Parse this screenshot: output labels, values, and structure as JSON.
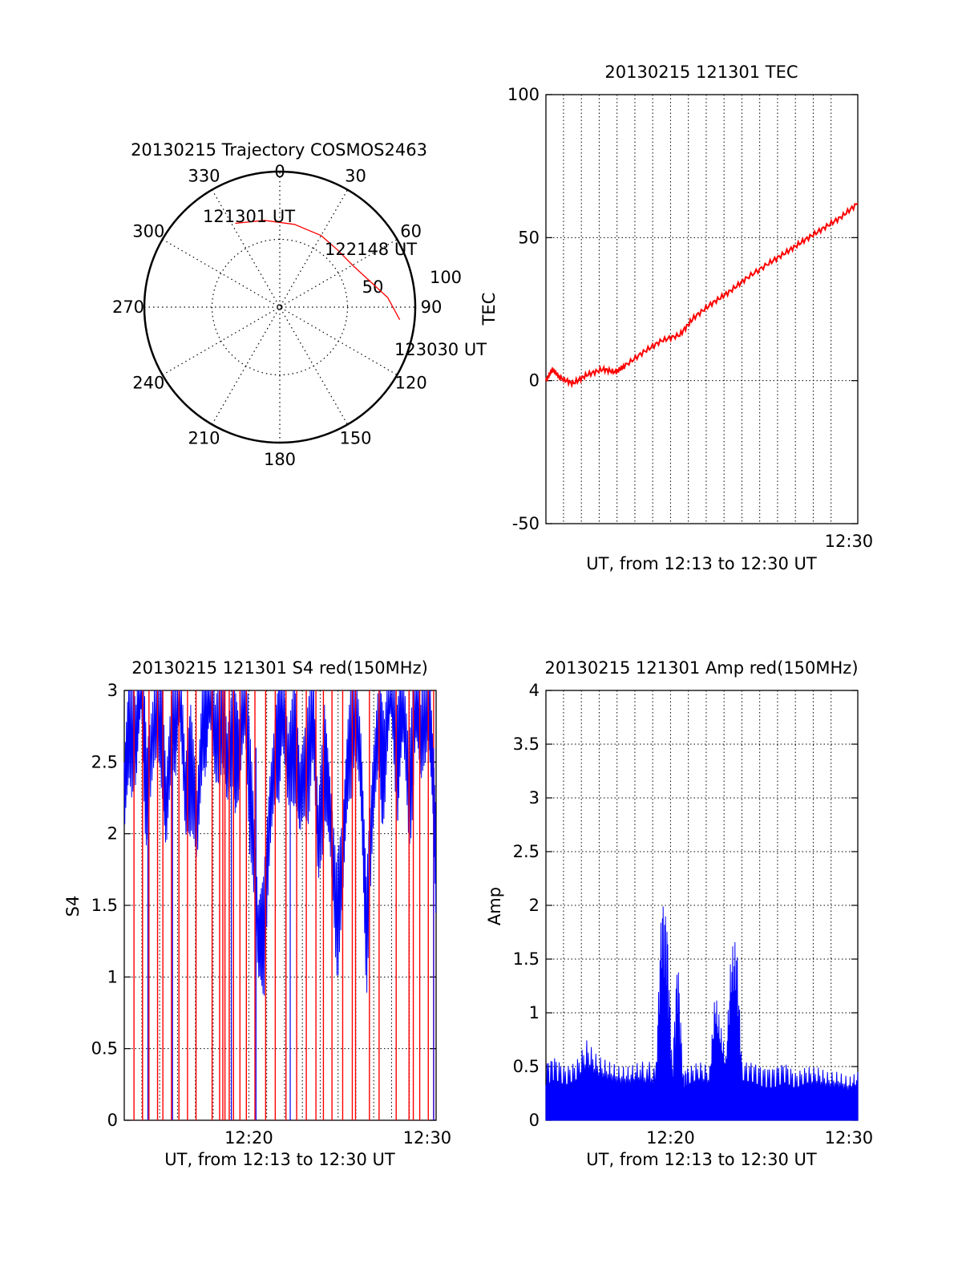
{
  "colors": {
    "axis": "#000000",
    "grid": "#000000",
    "tec_line": "#ff0000",
    "s4_red": "#ff0000",
    "s4_blue": "#0000ff",
    "amp": "#0000ff"
  },
  "chart_data": [
    {
      "id": "trajectory",
      "type": "polar",
      "title": "20130215 Trajectory COSMOS2463",
      "angular_ticks": [
        "0",
        "30",
        "60",
        "90",
        "120",
        "150",
        "180",
        "210",
        "240",
        "270",
        "300",
        "330"
      ],
      "radial_ticks": [
        {
          "label": "50",
          "value": 50
        },
        {
          "label": "100",
          "value": 100
        }
      ],
      "rlim": [
        0,
        100
      ],
      "grid": true,
      "series": [
        {
          "color": "#ff0000",
          "points": [
            [
              -28,
              70
            ],
            [
              -10,
              65
            ],
            [
              10,
              62
            ],
            [
              30,
              61
            ],
            [
              45,
              60
            ],
            [
              60,
              62
            ],
            [
              75,
              70
            ],
            [
              85,
              80
            ],
            [
              96,
              89
            ]
          ]
        }
      ],
      "annotations": [
        "121301 UT",
        "122148 UT",
        "123030 UT"
      ]
    },
    {
      "id": "tec",
      "type": "line",
      "title": "20130215 121301 TEC",
      "ylabel": "TEC",
      "xlabel": "UT, from 12:13 to 12:30 UT",
      "xlim": [
        12.2169,
        12.5083
      ],
      "ylim": [
        -50,
        100
      ],
      "yticks": [
        "-50",
        "0",
        "50",
        "100"
      ],
      "xticks": [
        "12:30"
      ],
      "grid": true,
      "series": [
        {
          "x": [
            12.2169,
            12.223,
            12.23,
            12.242,
            12.255,
            12.27,
            12.282,
            12.29,
            12.308,
            12.325,
            12.342,
            12.355,
            12.372,
            12.388,
            12.405,
            12.425,
            12.442,
            12.458,
            12.475,
            12.492,
            12.5083
          ],
          "y": [
            0,
            4,
            1,
            -1,
            2,
            4,
            3,
            5,
            10,
            14,
            16,
            22,
            27,
            31,
            36,
            41,
            45,
            49,
            53,
            57,
            62
          ]
        }
      ]
    },
    {
      "id": "s4",
      "type": "line",
      "title": "20130215 121301 S4 red(150MHz)",
      "ylabel": "S4",
      "xlabel": "UT, from 12:13 to 12:30 UT",
      "xlim": [
        12.2169,
        12.5083
      ],
      "ylim": [
        0,
        3
      ],
      "yticks": [
        "0",
        "0.5",
        "1",
        "1.5",
        "2",
        "2.5",
        "3"
      ],
      "xticks": [
        "12:20",
        "12:30"
      ],
      "grid": true,
      "series": [
        {
          "color": "#0000ff",
          "x": [
            12.2169,
            12.222,
            12.228,
            12.233,
            12.238,
            12.245,
            12.251,
            12.256,
            12.262,
            12.268,
            12.274,
            12.279,
            12.285,
            12.291,
            12.296,
            12.302,
            12.308,
            12.313,
            12.319,
            12.324,
            12.33,
            12.336,
            12.342,
            12.347,
            12.353,
            12.359,
            12.364,
            12.37,
            12.376,
            12.381,
            12.387,
            12.393,
            12.398,
            12.404,
            12.409,
            12.415,
            12.421,
            12.426,
            12.432,
            12.438,
            12.443,
            12.449,
            12.455,
            12.46,
            12.466,
            12.472,
            12.477,
            12.483,
            12.489,
            12.494,
            12.5,
            12.505,
            12.5083
          ],
          "y": [
            1.6,
            2.3,
            2.0,
            2.6,
            1.7,
            2.1,
            2.4,
            1.5,
            2.2,
            2.6,
            1.6,
            2.0,
            1.4,
            2.3,
            2.5,
            2.0,
            2.4,
            1.8,
            2.2,
            1.9,
            2.4,
            1.6,
            0.6,
            0.8,
            1.5,
            2.0,
            2.4,
            1.8,
            2.2,
            1.6,
            1.9,
            2.3,
            1.3,
            2.0,
            1.5,
            0.9,
            1.2,
            1.9,
            2.4,
            1.8,
            0.8,
            1.6,
            2.2,
            1.9,
            2.5,
            2.0,
            2.3,
            1.7,
            2.4,
            2.0,
            2.6,
            1.8,
            1.2
          ]
        },
        {
          "color": "#ff0000",
          "drops_x": [
            12.226,
            12.234,
            12.24,
            12.248,
            12.253,
            12.261,
            12.268,
            12.276,
            12.284,
            12.299,
            12.306,
            12.309,
            12.311,
            12.315,
            12.319,
            12.325,
            12.331,
            12.339,
            12.349,
            12.358,
            12.368,
            12.378,
            12.387,
            12.396,
            12.403,
            12.411,
            12.421,
            12.43,
            12.433,
            12.446,
            12.455,
            12.471,
            12.483,
            12.487,
            12.493,
            12.501,
            12.506
          ]
        }
      ]
    },
    {
      "id": "amp",
      "type": "line",
      "title": "20130215 121301 Amp red(150MHz)",
      "ylabel": "Amp",
      "xlabel": "UT, from 12:13 to 12:30 UT",
      "xlim": [
        12.2169,
        12.5083
      ],
      "ylim": [
        0,
        4
      ],
      "yticks": [
        "0",
        "0.5",
        "1",
        "1.5",
        "2",
        "2.5",
        "3",
        "3.5",
        "4"
      ],
      "xticks": [
        "12:20",
        "12:30"
      ],
      "grid": true,
      "series": [
        {
          "color": "#0000ff",
          "x": [
            12.2169,
            12.225,
            12.235,
            12.245,
            12.255,
            12.265,
            12.275,
            12.285,
            12.295,
            12.305,
            12.32,
            12.325,
            12.33,
            12.335,
            12.34,
            12.345,
            12.35,
            12.36,
            12.37,
            12.375,
            12.38,
            12.385,
            12.39,
            12.395,
            12.4,
            12.41,
            12.42,
            12.43,
            12.44,
            12.45,
            12.46,
            12.47,
            12.48,
            12.49,
            12.5,
            12.5083
          ],
          "y": [
            0.55,
            0.6,
            0.5,
            0.55,
            0.75,
            0.6,
            0.55,
            0.5,
            0.5,
            0.55,
            0.55,
            2.1,
            1.9,
            0.5,
            1.6,
            0.45,
            0.5,
            0.55,
            0.5,
            1.2,
            0.9,
            0.6,
            1.6,
            1.7,
            0.55,
            0.55,
            0.5,
            0.5,
            0.55,
            0.45,
            0.5,
            0.5,
            0.45,
            0.45,
            0.4,
            0.45
          ]
        }
      ]
    }
  ]
}
